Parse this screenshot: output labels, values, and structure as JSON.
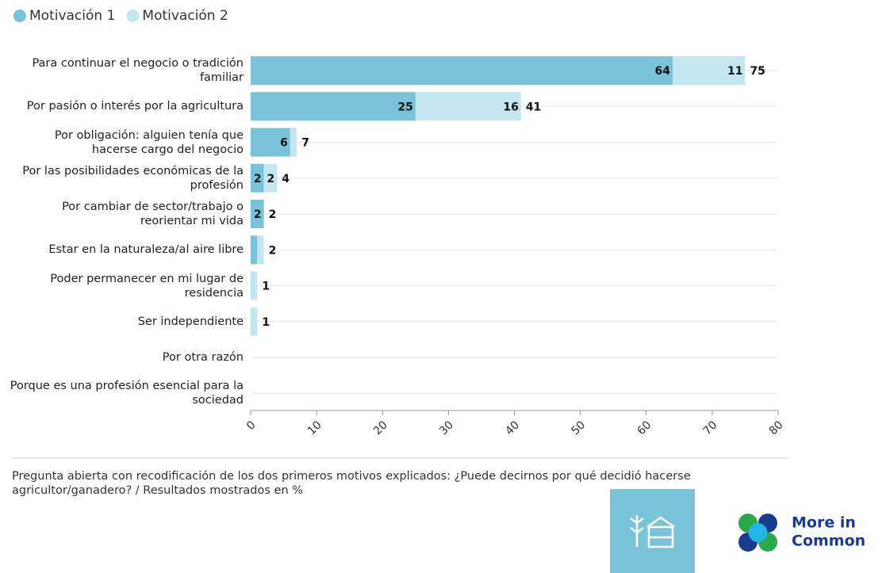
{
  "chart_data": {
    "type": "stacked-bar-horizontal",
    "categories": [
      "Para continuar el negocio o tradición familiar",
      "Por pasión o interés por la agricultura",
      "Por obligación: alguien tenía que hacerse cargo del negocio",
      "Por las posibilidades económicas de la profesión",
      "Por cambiar de sector/trabajo o reorientar mi vida",
      "Estar en la naturaleza/al aire libre",
      "Poder permanecer en mi lugar de residencia",
      "Ser independiente",
      "Por otra razón",
      "Porque es una profesión esencial para la sociedad"
    ],
    "series": [
      {
        "name": "Motivación 1",
        "color": "#78c3d9",
        "values": [
          64,
          25,
          6,
          2,
          2,
          1,
          0,
          0,
          0,
          0
        ]
      },
      {
        "name": "Motivación 2",
        "color": "#c4e6ef",
        "values": [
          11,
          16,
          1,
          2,
          0,
          1,
          1,
          1,
          0,
          0
        ]
      }
    ],
    "totals": [
      75,
      41,
      7,
      4,
      2,
      2,
      1,
      1,
      null,
      null
    ],
    "xlim": [
      0,
      80
    ],
    "xticks": [
      0,
      10,
      20,
      30,
      40,
      50,
      60,
      70,
      80
    ],
    "grid": true,
    "note": "Pregunta abierta con recodificación de los dos primeros motivos explicados: ¿Puede decirnos por qué decidió hacerse agricultor/ganadero? / Resultados mostrados en %",
    "logo": [
      "More in",
      "Common"
    ]
  }
}
